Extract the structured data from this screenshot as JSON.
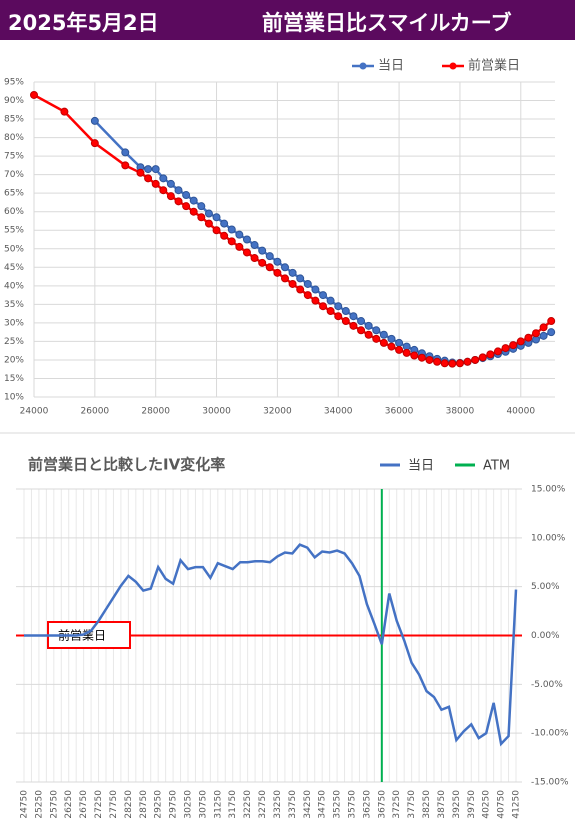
{
  "header": {
    "date": "2025年5月2日",
    "title": "前営業日比スマイルカーブ"
  },
  "chart_data": [
    {
      "type": "line",
      "x": [
        24000,
        25000,
        26000,
        27000,
        27500,
        27750,
        28000,
        28250,
        28500,
        28750,
        29000,
        29250,
        29500,
        29750,
        30000,
        30250,
        30500,
        30750,
        31000,
        31250,
        31500,
        31750,
        32000,
        32250,
        32500,
        32750,
        33000,
        33250,
        33500,
        33750,
        34000,
        34250,
        34500,
        34750,
        35000,
        35250,
        35500,
        35750,
        36000,
        36250,
        36500,
        36750,
        37000,
        37250,
        37500,
        37750,
        38000,
        38250,
        38500,
        38750,
        39000,
        39250,
        39500,
        39750,
        40000,
        40250,
        40500,
        40750,
        41000
      ],
      "series": [
        {
          "name": "当日",
          "color": "#4472c4",
          "values": [
            null,
            null,
            84.5,
            76,
            72,
            71.5,
            71.5,
            69,
            67.5,
            65.8,
            64.5,
            63,
            61.5,
            59.5,
            58.5,
            56.8,
            55.2,
            53.8,
            52.5,
            51,
            49.5,
            48,
            46.5,
            45,
            43.5,
            42,
            40.5,
            39,
            37.5,
            36,
            34.5,
            33.2,
            31.8,
            30.5,
            29.2,
            28,
            26.8,
            25.7,
            24.6,
            23.6,
            22.7,
            21.8,
            21,
            20.3,
            19.8,
            19.3,
            19.2,
            19.5,
            20,
            20.5,
            21,
            21.6,
            22.2,
            23,
            23.8,
            24.6,
            25.5,
            26.5,
            27.5
          ]
        },
        {
          "name": "前営業日",
          "color": "#ff0000",
          "values": [
            91.5,
            87,
            78.5,
            72.5,
            70.5,
            69,
            67.5,
            65.8,
            64.2,
            62.8,
            61.5,
            60,
            58.5,
            56.8,
            55,
            53.5,
            52,
            50.5,
            49,
            47.5,
            46.2,
            45,
            43.5,
            42,
            40.5,
            39,
            37.5,
            36,
            34.5,
            33.2,
            31.8,
            30.5,
            29.2,
            28,
            26.8,
            25.7,
            24.6,
            23.6,
            22.7,
            21.9,
            21.2,
            20.6,
            20,
            19.5,
            19.1,
            19,
            19.1,
            19.5,
            20,
            20.7,
            21.5,
            22.3,
            23.2,
            24,
            25,
            26,
            27.2,
            28.8,
            30.5
          ]
        }
      ],
      "xlim": [
        24000,
        41125
      ],
      "xticks": [
        24000,
        26000,
        28000,
        30000,
        32000,
        34000,
        36000,
        38000,
        40000
      ],
      "ylim": [
        10,
        95
      ],
      "yticks": [
        {
          "value": 10,
          "label": "10%"
        },
        {
          "value": 15,
          "label": "15%"
        },
        {
          "value": 20,
          "label": "20%"
        },
        {
          "value": 25,
          "label": "25%"
        },
        {
          "value": 30,
          "label": "30%"
        },
        {
          "value": 35,
          "label": "35%"
        },
        {
          "value": 40,
          "label": "40%"
        },
        {
          "value": 45,
          "label": "45%"
        },
        {
          "value": 50,
          "label": "50%"
        },
        {
          "value": 55,
          "label": "55%"
        },
        {
          "value": 60,
          "label": "60%"
        },
        {
          "value": 65,
          "label": "65%"
        },
        {
          "value": 70,
          "label": "70%"
        },
        {
          "value": 75,
          "label": "75%"
        },
        {
          "value": 80,
          "label": "80%"
        },
        {
          "value": 85,
          "label": "85%"
        },
        {
          "value": 90,
          "label": "90%"
        },
        {
          "value": 95,
          "label": "95%"
        }
      ],
      "grid": true,
      "legend": "top-right",
      "markers": true
    },
    {
      "type": "line",
      "title": "前営業日と比較したIV変化率",
      "categories": [
        24750,
        null,
        25250,
        null,
        25750,
        null,
        26250,
        null,
        26750,
        null,
        27250,
        null,
        27750,
        null,
        28250,
        null,
        28750,
        null,
        29250,
        null,
        29750,
        null,
        30250,
        null,
        30750,
        null,
        31250,
        null,
        31750,
        null,
        32250,
        null,
        32750,
        null,
        33250,
        null,
        33750,
        null,
        34250,
        null,
        34750,
        null,
        35250,
        null,
        35750,
        null,
        36250,
        null,
        36750,
        null,
        37250,
        null,
        37750,
        null,
        38250,
        null,
        38750,
        null,
        39250,
        null,
        39750,
        null,
        40250,
        null,
        40750,
        null,
        41250
      ],
      "series": [
        {
          "name": "当日",
          "color": "#4472c4",
          "values": [
            0,
            0,
            0,
            0,
            0,
            0,
            0,
            0,
            0.1,
            0.5,
            1.5,
            2.7,
            3.9,
            5.1,
            6.1,
            5.5,
            4.6,
            4.8,
            7.0,
            5.8,
            5.3,
            7.7,
            6.8,
            7.0,
            7.0,
            5.9,
            7.4,
            7.1,
            6.8,
            7.5,
            7.5,
            7.6,
            7.6,
            7.5,
            8.1,
            8.5,
            8.4,
            9.3,
            9.0,
            8.0,
            8.6,
            8.5,
            8.7,
            8.4,
            7.4,
            6.1,
            3.2,
            1.2,
            -0.9,
            4.3,
            1.5,
            -0.5,
            -2.8,
            -4.0,
            -5.7,
            -6.3,
            -7.6,
            -7.3,
            -10.7,
            -9.8,
            -9.1,
            -10.5,
            -10.0,
            -6.9,
            -11.1,
            -10.3,
            4.7
          ]
        }
      ],
      "atm": {
        "name": "ATM",
        "category": 36750,
        "color": "#00b050"
      },
      "reference_line": {
        "label": "前営業日",
        "value": 0,
        "color": "#ff0000"
      },
      "ylim": [
        -15,
        15
      ],
      "yticks": [
        {
          "value": -15,
          "label": "-15.00%"
        },
        {
          "value": -10,
          "label": "-10.00%"
        },
        {
          "value": -5,
          "label": "-5.00%"
        },
        {
          "value": 0,
          "label": "0.00%"
        },
        {
          "value": 5,
          "label": "5.00%"
        },
        {
          "value": 10,
          "label": "10.00%"
        },
        {
          "value": 15,
          "label": "15.00%"
        }
      ],
      "grid": true,
      "legend": "top-right",
      "y_axis_side": "right"
    }
  ]
}
